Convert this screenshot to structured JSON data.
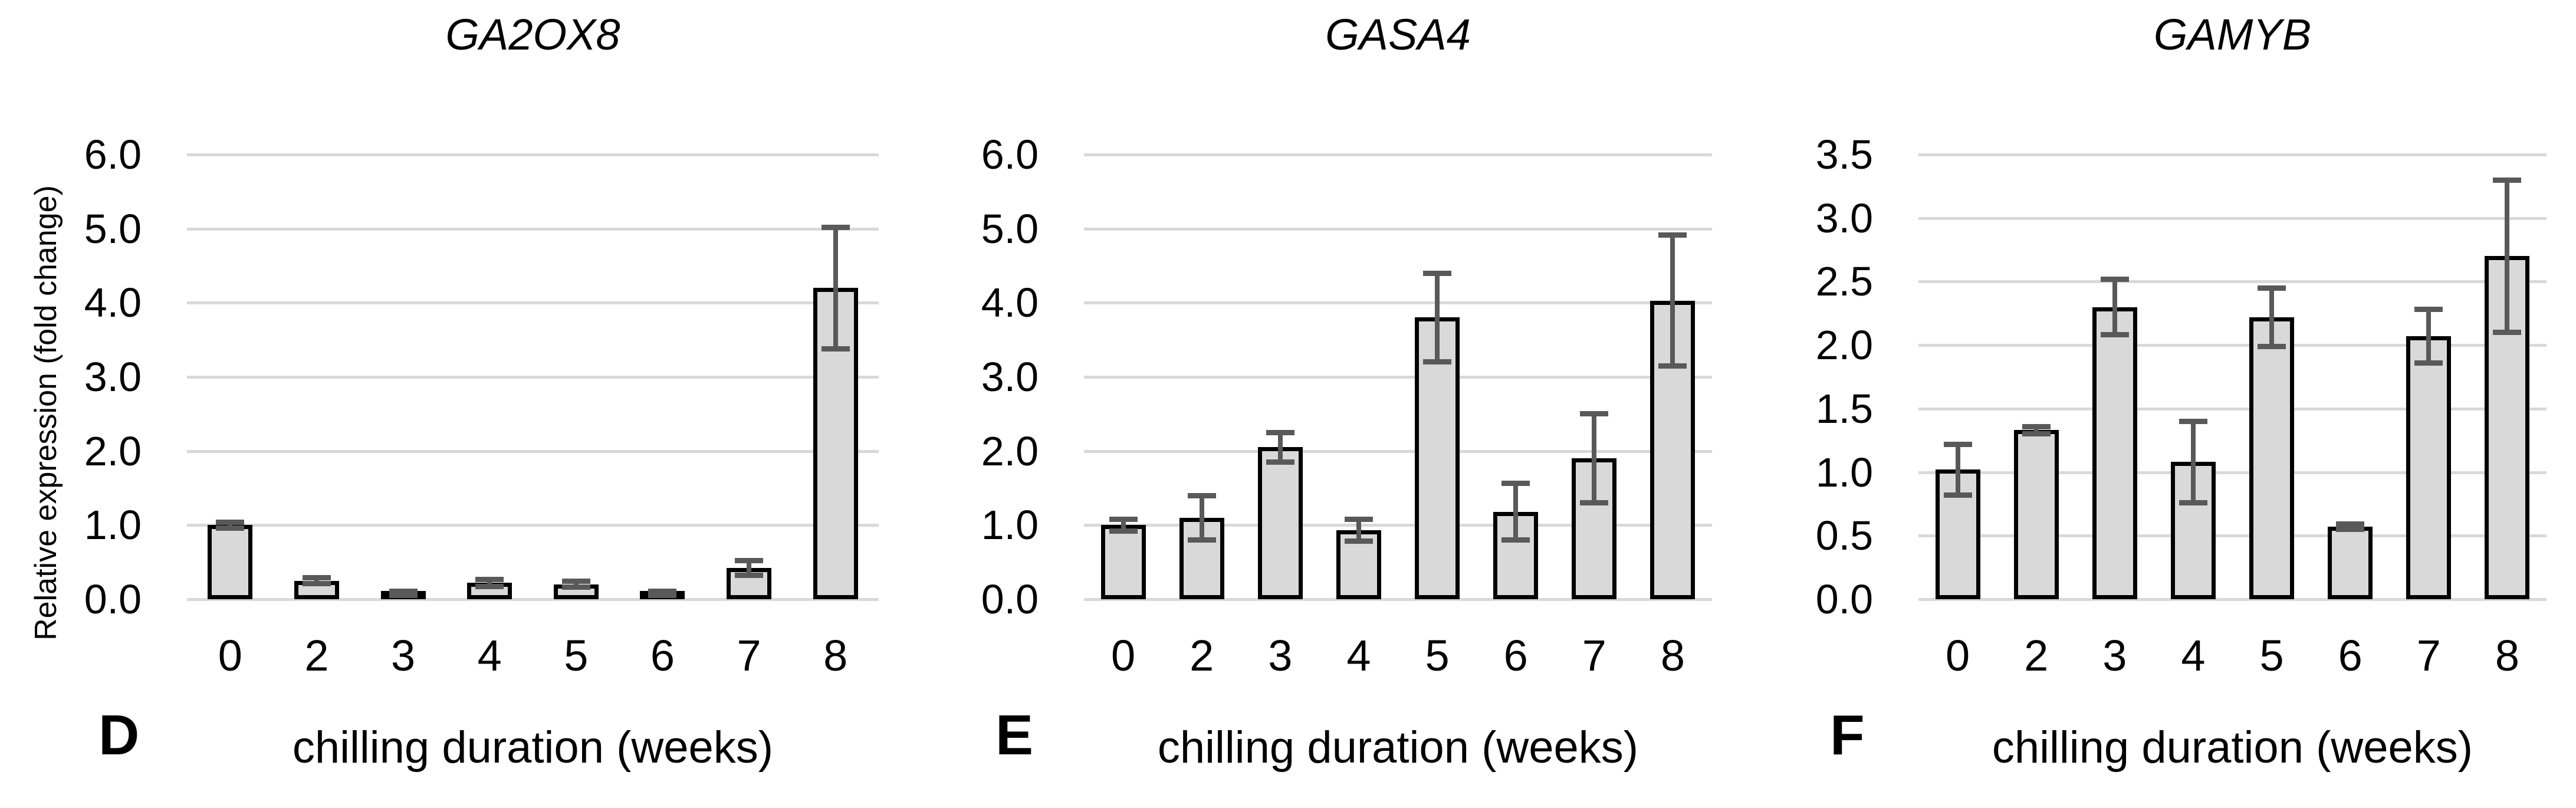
{
  "figure": {
    "y_axis_label": "Relative expression (fold change)",
    "x_axis_label": "chilling duration (weeks)"
  },
  "colors": {
    "bar_fill": "#d9d9d9",
    "bar_border": "#000000",
    "error_bar": "#595959",
    "gridline": "#d9d9d9",
    "text": "#000000",
    "background": "#ffffff"
  },
  "chart_data": [
    {
      "type": "bar",
      "panel_letter": "D",
      "title": "GA2OX8",
      "xlabel": "chilling duration (weeks)",
      "ylabel": "Relative expression (fold change)",
      "categories": [
        "0",
        "2",
        "3",
        "4",
        "5",
        "6",
        "7",
        "8"
      ],
      "values": [
        1.0,
        0.25,
        0.08,
        0.22,
        0.2,
        0.08,
        0.42,
        4.2
      ],
      "errors": [
        0.04,
        0.04,
        0.03,
        0.05,
        0.04,
        0.03,
        0.1,
        0.82
      ],
      "ylim": [
        0,
        6.0
      ],
      "ytick_step": 1.0,
      "ytick_labels": [
        "0.0",
        "1.0",
        "2.0",
        "3.0",
        "4.0",
        "5.0",
        "6.0"
      ],
      "grid": true,
      "legend": null
    },
    {
      "type": "bar",
      "panel_letter": "E",
      "title": "GASA4",
      "xlabel": "chilling duration (weeks)",
      "ylabel": "",
      "categories": [
        "0",
        "2",
        "3",
        "4",
        "5",
        "6",
        "7",
        "8"
      ],
      "values": [
        1.0,
        1.1,
        2.05,
        0.93,
        3.8,
        1.18,
        1.9,
        4.03
      ],
      "errors": [
        0.08,
        0.3,
        0.2,
        0.15,
        0.6,
        0.38,
        0.6,
        0.88
      ],
      "ylim": [
        0,
        6.0
      ],
      "ytick_step": 1.0,
      "ytick_labels": [
        "0.0",
        "1.0",
        "2.0",
        "3.0",
        "4.0",
        "5.0",
        "6.0"
      ],
      "grid": true,
      "legend": null
    },
    {
      "type": "bar",
      "panel_letter": "F",
      "title": "GAMYB",
      "xlabel": "chilling duration (weeks)",
      "ylabel": "",
      "categories": [
        "0",
        "2",
        "3",
        "4",
        "5",
        "6",
        "7",
        "8"
      ],
      "values": [
        1.02,
        1.33,
        2.3,
        1.08,
        2.22,
        0.57,
        2.07,
        2.7
      ],
      "errors": [
        0.2,
        0.03,
        0.22,
        0.32,
        0.23,
        0.02,
        0.21,
        0.6
      ],
      "ylim": [
        0,
        3.5
      ],
      "ytick_step": 0.5,
      "ytick_labels": [
        "0.0",
        "0.5",
        "1.0",
        "1.5",
        "2.0",
        "2.5",
        "3.0",
        "3.5"
      ],
      "grid": true,
      "legend": null
    }
  ]
}
